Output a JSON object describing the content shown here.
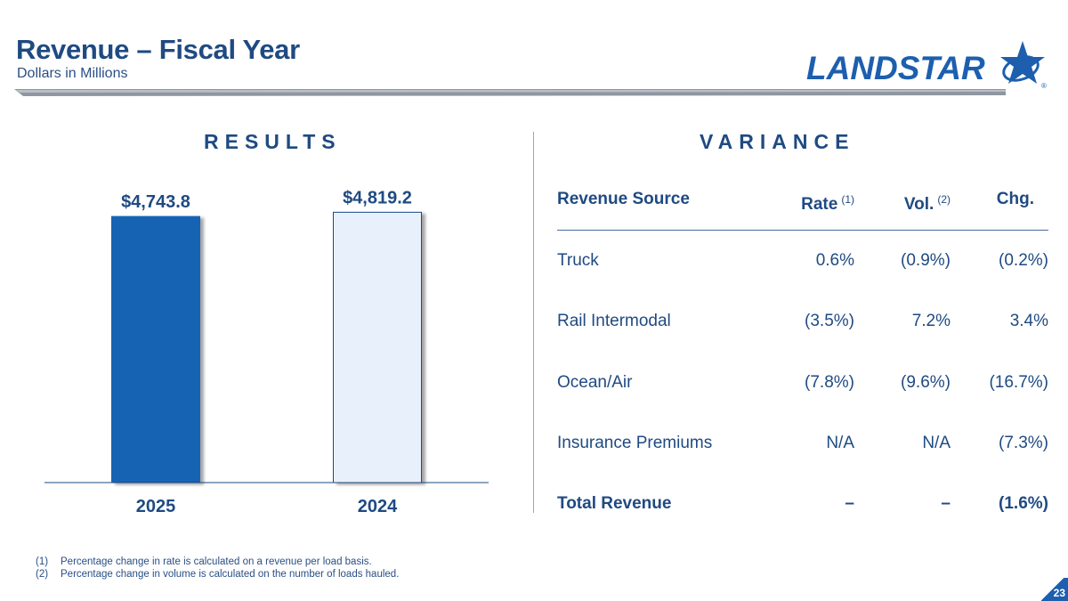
{
  "header": {
    "title": "Revenue – Fiscal Year",
    "subtitle": "Dollars in Millions",
    "brand_name": "LANDSTAR",
    "brand_mark": "®"
  },
  "colors": {
    "primary": "#1f4a82",
    "accent": "#1d5fae",
    "bar_2025": "#1464b4",
    "bar_2024": "#e8f1fb"
  },
  "results": {
    "heading": "RESULTS"
  },
  "chart_data": {
    "type": "bar",
    "title": "RESULTS",
    "categories": [
      "2025",
      "2024"
    ],
    "values": [
      4743.8,
      4819.2
    ],
    "data_labels": [
      "$4,743.8",
      "$4,819.2"
    ],
    "unit": "Dollars in Millions",
    "xlabel": "",
    "ylabel": "",
    "ylim": [
      0,
      5000
    ],
    "grid": false,
    "legend": "none"
  },
  "variance": {
    "heading": "VARIANCE",
    "columns": [
      {
        "label": "Revenue Source",
        "note": ""
      },
      {
        "label": "Rate",
        "note": "(1)"
      },
      {
        "label": "Vol.",
        "note": "(2)"
      },
      {
        "label": "Chg.",
        "note": ""
      }
    ],
    "rows": [
      [
        "Truck",
        "0.6%",
        "(0.9%)",
        "(0.2%)"
      ],
      [
        "Rail Intermodal",
        "(3.5%)",
        "7.2%",
        "3.4%"
      ],
      [
        "Ocean/Air",
        "(7.8%)",
        "(9.6%)",
        "(16.7%)"
      ],
      [
        "Insurance Premiums",
        "N/A",
        "N/A",
        "(7.3%)"
      ]
    ],
    "total": [
      "Total Revenue",
      "–",
      "–",
      "(1.6%)"
    ]
  },
  "footnotes": [
    {
      "num": "(1)",
      "text": "Percentage change in rate is calculated on a revenue per load basis."
    },
    {
      "num": "(2)",
      "text": "Percentage change in volume is calculated on the number of loads hauled."
    }
  ],
  "page_number": "23"
}
